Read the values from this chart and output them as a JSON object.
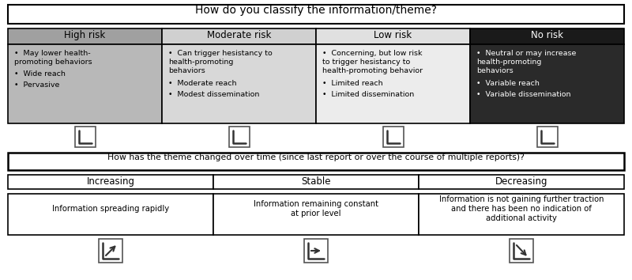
{
  "title1": "How do you classify the information/theme?",
  "title2": "How has the theme changed over time (since last report or over the course of multiple reports)?",
  "risk_headers": [
    "High risk",
    "Moderate risk",
    "Low risk",
    "No risk"
  ],
  "risk_header_bg": [
    "#a0a0a0",
    "#d0d0d0",
    "#e0e0e0",
    "#1a1a1a"
  ],
  "risk_header_fg": [
    "#000000",
    "#000000",
    "#000000",
    "#ffffff"
  ],
  "risk_body_bg": [
    "#b8b8b8",
    "#d8d8d8",
    "#ececec",
    "#2a2a2a"
  ],
  "risk_body_fg": [
    "#000000",
    "#000000",
    "#000000",
    "#ffffff"
  ],
  "risk_bullets": [
    [
      "May lower health-\npromoting behaviors",
      "Wide reach",
      "Pervasive"
    ],
    [
      "Can trigger hesistancy to\nhealth-promoting\nbehaviors",
      "Moderate reach",
      "Modest dissemination"
    ],
    [
      "Concerning, but low risk\nto trigger hesistancy to\nhealth-promoting behavior",
      "Limited reach",
      "Limited dissemination"
    ],
    [
      "Neutral or may increase\nhealth-promoting\nbehaviors",
      "Variable reach",
      "Variable dissemination"
    ]
  ],
  "trend_headers": [
    "Increasing",
    "Stable",
    "Decreasing"
  ],
  "trend_descriptions": [
    "Information spreading rapidly",
    "Information remaining constant\nat prior level",
    "Information is not gaining further traction\nand there has been no indication of\nadditional activity"
  ],
  "bg_color": "#ffffff"
}
